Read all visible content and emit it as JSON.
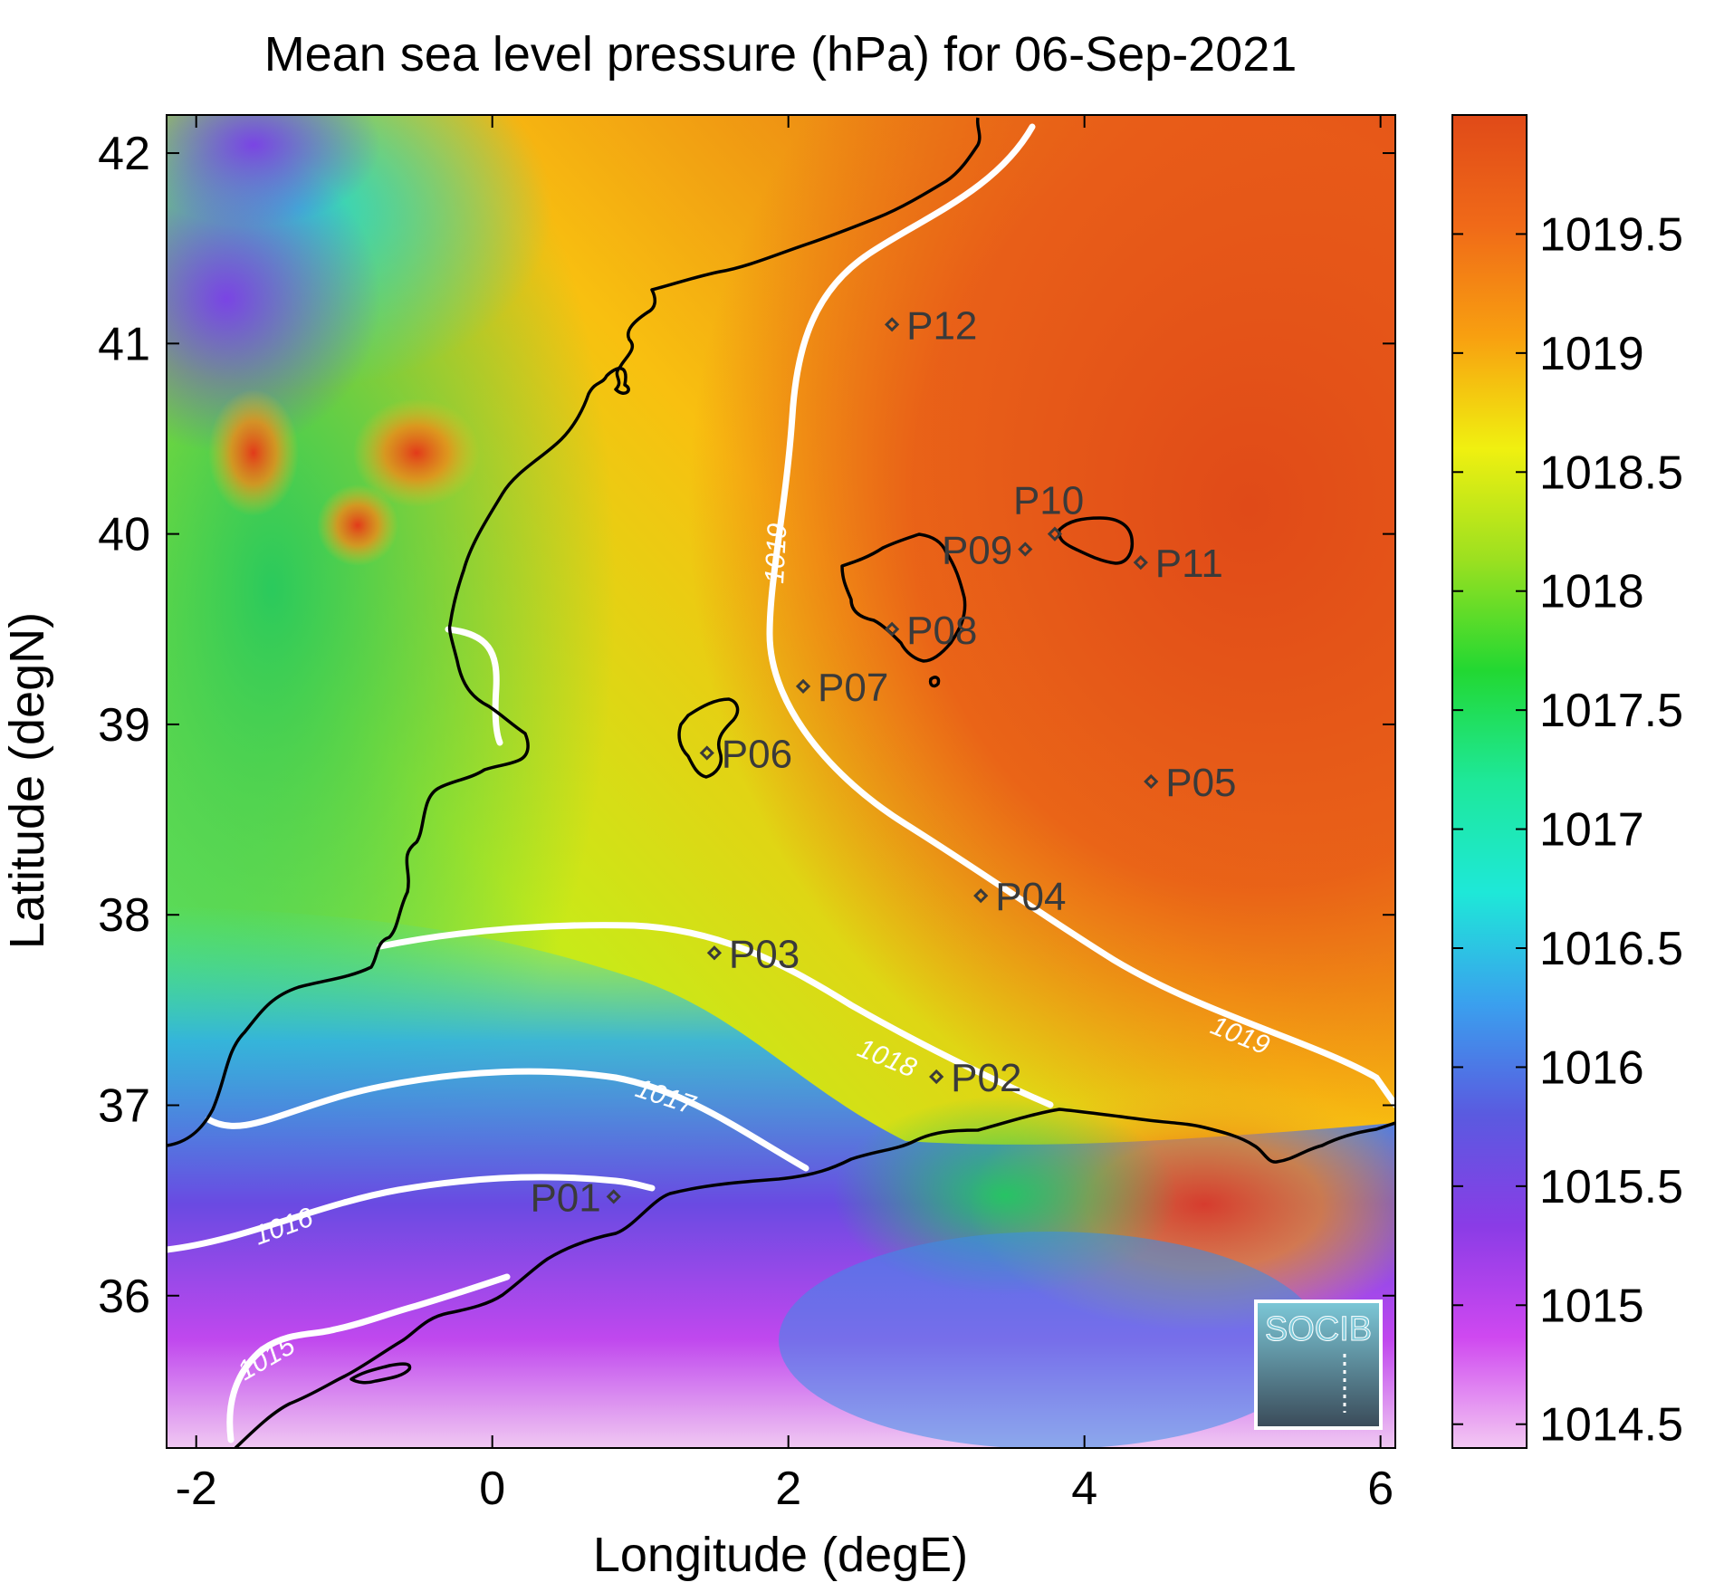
{
  "title": "Mean sea level pressure (hPa) for 06-Sep-2021",
  "xlabel": "Longitude (degE)",
  "ylabel": "Latitude (degN)",
  "map": {
    "lon_range": [
      -2.2,
      6.1
    ],
    "lat_range": [
      35.2,
      42.2
    ],
    "x_ticks": [
      {
        "value": -2,
        "label": "-2"
      },
      {
        "value": 0,
        "label": "0"
      },
      {
        "value": 2,
        "label": "2"
      },
      {
        "value": 4,
        "label": "4"
      },
      {
        "value": 6,
        "label": "6"
      }
    ],
    "y_ticks": [
      {
        "value": 36,
        "label": "36"
      },
      {
        "value": 37,
        "label": "37"
      },
      {
        "value": 38,
        "label": "38"
      },
      {
        "value": 39,
        "label": "39"
      },
      {
        "value": 40,
        "label": "40"
      },
      {
        "value": 41,
        "label": "41"
      },
      {
        "value": 42,
        "label": "42"
      }
    ]
  },
  "colorbar": {
    "range": [
      1014.4,
      1020.0
    ],
    "ticks": [
      {
        "value": 1014.5,
        "label": "1014.5"
      },
      {
        "value": 1015,
        "label": "1015"
      },
      {
        "value": 1015.5,
        "label": "1015.5"
      },
      {
        "value": 1016,
        "label": "1016"
      },
      {
        "value": 1016.5,
        "label": "1016.5"
      },
      {
        "value": 1017,
        "label": "1017"
      },
      {
        "value": 1017.5,
        "label": "1017.5"
      },
      {
        "value": 1018,
        "label": "1018"
      },
      {
        "value": 1018.5,
        "label": "1018.5"
      },
      {
        "value": 1019,
        "label": "1019"
      },
      {
        "value": 1019.5,
        "label": "1019.5"
      }
    ],
    "colors": [
      "#f3c8f3",
      "#cf48f0",
      "#8a3ce6",
      "#5a5ae0",
      "#3aa0ee",
      "#1ee8d8",
      "#1ee89a",
      "#22d832",
      "#9ce020",
      "#f0f010",
      "#f8a010",
      "#f06a18",
      "#e04a18"
    ]
  },
  "contours": [
    {
      "label": "1015",
      "level": 1015
    },
    {
      "label": "1016",
      "level": 1016
    },
    {
      "label": "1017",
      "level": 1017
    },
    {
      "label": "1018",
      "level": 1018
    },
    {
      "label": "1019",
      "level": 1019
    }
  ],
  "stations": [
    {
      "id": "P01",
      "lon": 0.82,
      "lat": 36.52
    },
    {
      "id": "P02",
      "lon": 3.0,
      "lat": 37.15
    },
    {
      "id": "P03",
      "lon": 1.5,
      "lat": 37.8
    },
    {
      "id": "P04",
      "lon": 3.3,
      "lat": 38.1
    },
    {
      "id": "P05",
      "lon": 4.45,
      "lat": 38.7
    },
    {
      "id": "P06",
      "lon": 1.45,
      "lat": 38.85
    },
    {
      "id": "P07",
      "lon": 2.1,
      "lat": 39.2
    },
    {
      "id": "P08",
      "lon": 2.7,
      "lat": 39.5
    },
    {
      "id": "P09",
      "lon": 3.6,
      "lat": 39.92
    },
    {
      "id": "P10",
      "lon": 3.8,
      "lat": 40.0
    },
    {
      "id": "P11",
      "lon": 4.38,
      "lat": 39.85
    },
    {
      "id": "P12",
      "lon": 2.7,
      "lat": 41.1
    }
  ],
  "logo": {
    "text": "SOCIB"
  }
}
